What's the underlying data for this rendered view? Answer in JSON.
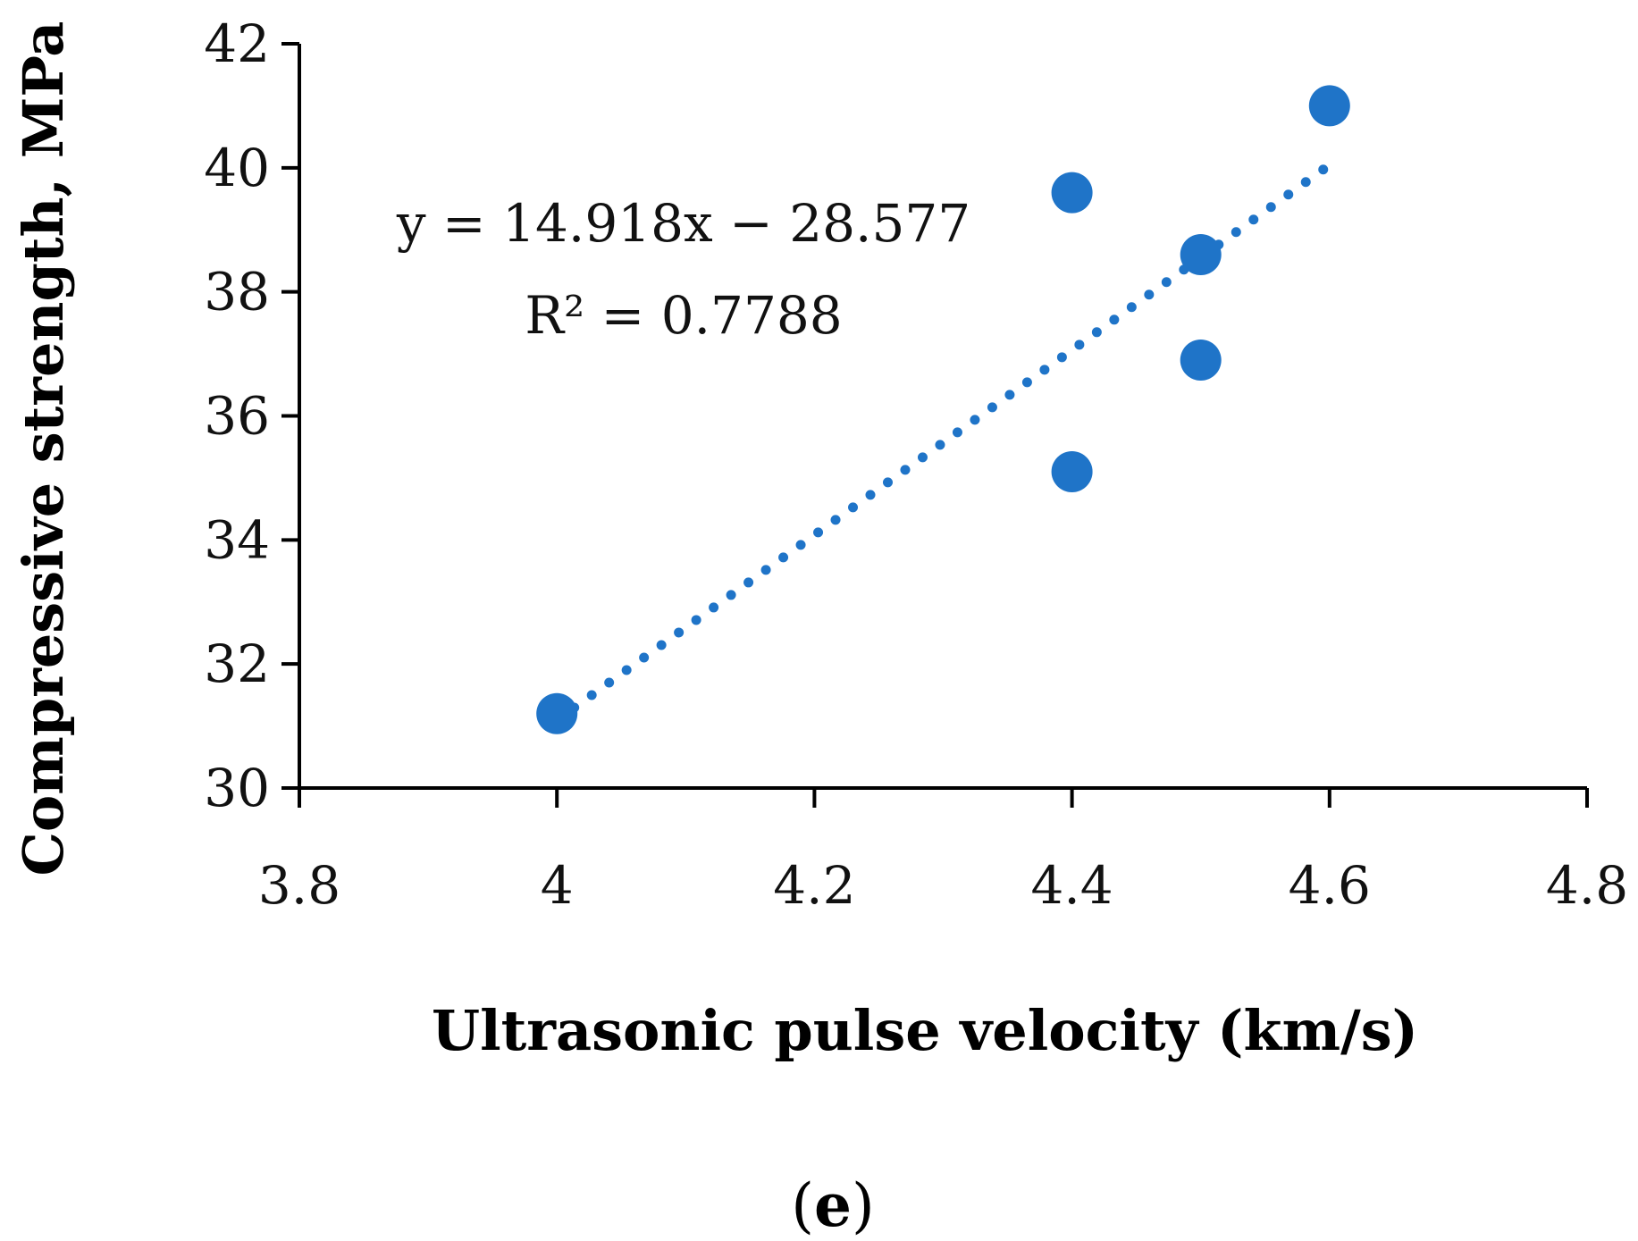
{
  "chart_data": {
    "type": "scatter",
    "title": "",
    "xlabel": "Ultrasonic pulse velocity (km/s)",
    "ylabel": "Compressive strength, MPa",
    "xlim": [
      3.8,
      4.8
    ],
    "ylim": [
      30,
      42
    ],
    "xticks": [
      3.8,
      4,
      4.2,
      4.4,
      4.6,
      4.8
    ],
    "xtick_labels": [
      "3.8",
      "4",
      "4.2",
      "4.4",
      "4.6",
      "4.8"
    ],
    "yticks": [
      30,
      32,
      34,
      36,
      38,
      40,
      42
    ],
    "ytick_labels": [
      "30",
      "32",
      "34",
      "36",
      "38",
      "40",
      "42"
    ],
    "grid": false,
    "series": [
      {
        "name": "Data",
        "x": [
          4.0,
          4.4,
          4.4,
          4.5,
          4.5,
          4.6
        ],
        "y": [
          31.2,
          39.6,
          35.1,
          38.6,
          36.9,
          41.0
        ],
        "color": "#1f74c8"
      }
    ],
    "trendline": {
      "type": "linear",
      "slope": 14.918,
      "intercept": -28.577,
      "x_range": [
        4.0,
        4.6
      ],
      "style": "dotted",
      "color": "#1f74c8",
      "equation_label": "y = 14.918x − 28.577",
      "r2_label": "R² = 0.7788"
    }
  },
  "caption": {
    "open": "(",
    "letter": "e",
    "close": ")"
  }
}
